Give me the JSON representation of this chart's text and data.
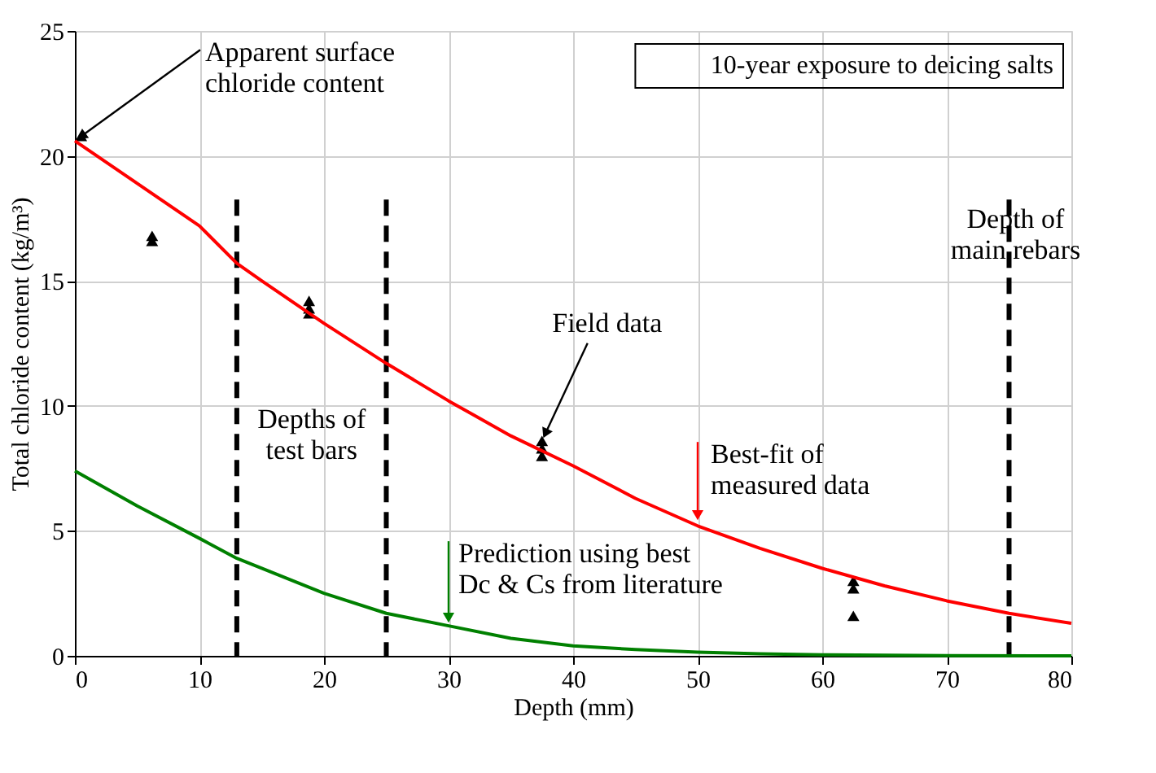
{
  "chart_data": {
    "type": "line",
    "xlabel": "Depth (mm)",
    "ylabel": "Total chloride content (kg/m³)",
    "xlim": [
      0,
      80
    ],
    "ylim": [
      0,
      25
    ],
    "xticks": [
      0,
      10,
      20,
      30,
      40,
      50,
      60,
      70,
      80
    ],
    "yticks": [
      0,
      5,
      10,
      15,
      20,
      25
    ],
    "grid": true,
    "series": [
      {
        "type": "scatter",
        "marker": "triangle",
        "color": "#000000",
        "x": [
          0.5,
          6.2,
          6.2,
          18.8,
          18.8,
          18.8,
          37.5,
          37.5,
          37.5,
          62.5,
          62.5,
          62.5
        ],
        "values": [
          20.8,
          16.8,
          16.6,
          14.2,
          13.9,
          13.7,
          8.6,
          8.3,
          8.0,
          3.0,
          2.7,
          1.6
        ]
      },
      {
        "marker": "none",
        "line_style": "solid",
        "color": "#ff0000",
        "x": [
          0,
          5,
          10,
          13,
          15,
          20,
          25,
          30,
          35,
          40,
          45,
          50,
          55,
          60,
          65,
          70,
          75,
          80
        ],
        "values": [
          20.6,
          18.9,
          17.2,
          15.7,
          15.0,
          13.3,
          11.7,
          10.2,
          8.8,
          7.6,
          6.3,
          5.2,
          4.3,
          3.5,
          2.8,
          2.2,
          1.7,
          1.3
        ]
      },
      {
        "marker": "none",
        "line_style": "solid",
        "color": "#008000",
        "x": [
          0,
          5,
          10,
          13,
          15,
          20,
          25,
          30,
          35,
          40,
          45,
          50,
          55,
          60,
          70,
          80
        ],
        "values": [
          7.4,
          6.0,
          4.7,
          3.9,
          3.5,
          2.5,
          1.7,
          1.2,
          0.7,
          0.4,
          0.25,
          0.15,
          0.08,
          0.04,
          0.01,
          0
        ]
      }
    ],
    "ref_lines": [
      {
        "axis": "x",
        "value": 13,
        "color": "#000000",
        "line_style": "dashed"
      },
      {
        "axis": "x",
        "value": 25,
        "color": "#000000",
        "line_style": "dashed"
      },
      {
        "axis": "x",
        "value": 75,
        "color": "#000000",
        "line_style": "dashed"
      }
    ],
    "annotations": [
      {
        "text": "Apparent surface\nchloride content",
        "x": 0,
        "y": 20.6
      },
      {
        "text": "Field data",
        "x": 37.5,
        "y": 8.6
      },
      {
        "text": "Best-fit of\nmeasured data",
        "x": 50,
        "y": 5.3
      },
      {
        "text": "Prediction using best\nDc & Cs from literature",
        "x": 30,
        "y": 1.2
      },
      "10-year exposure to deicing salts",
      "Depths of\ntest bars",
      "Depth of\nmain rebars"
    ]
  }
}
